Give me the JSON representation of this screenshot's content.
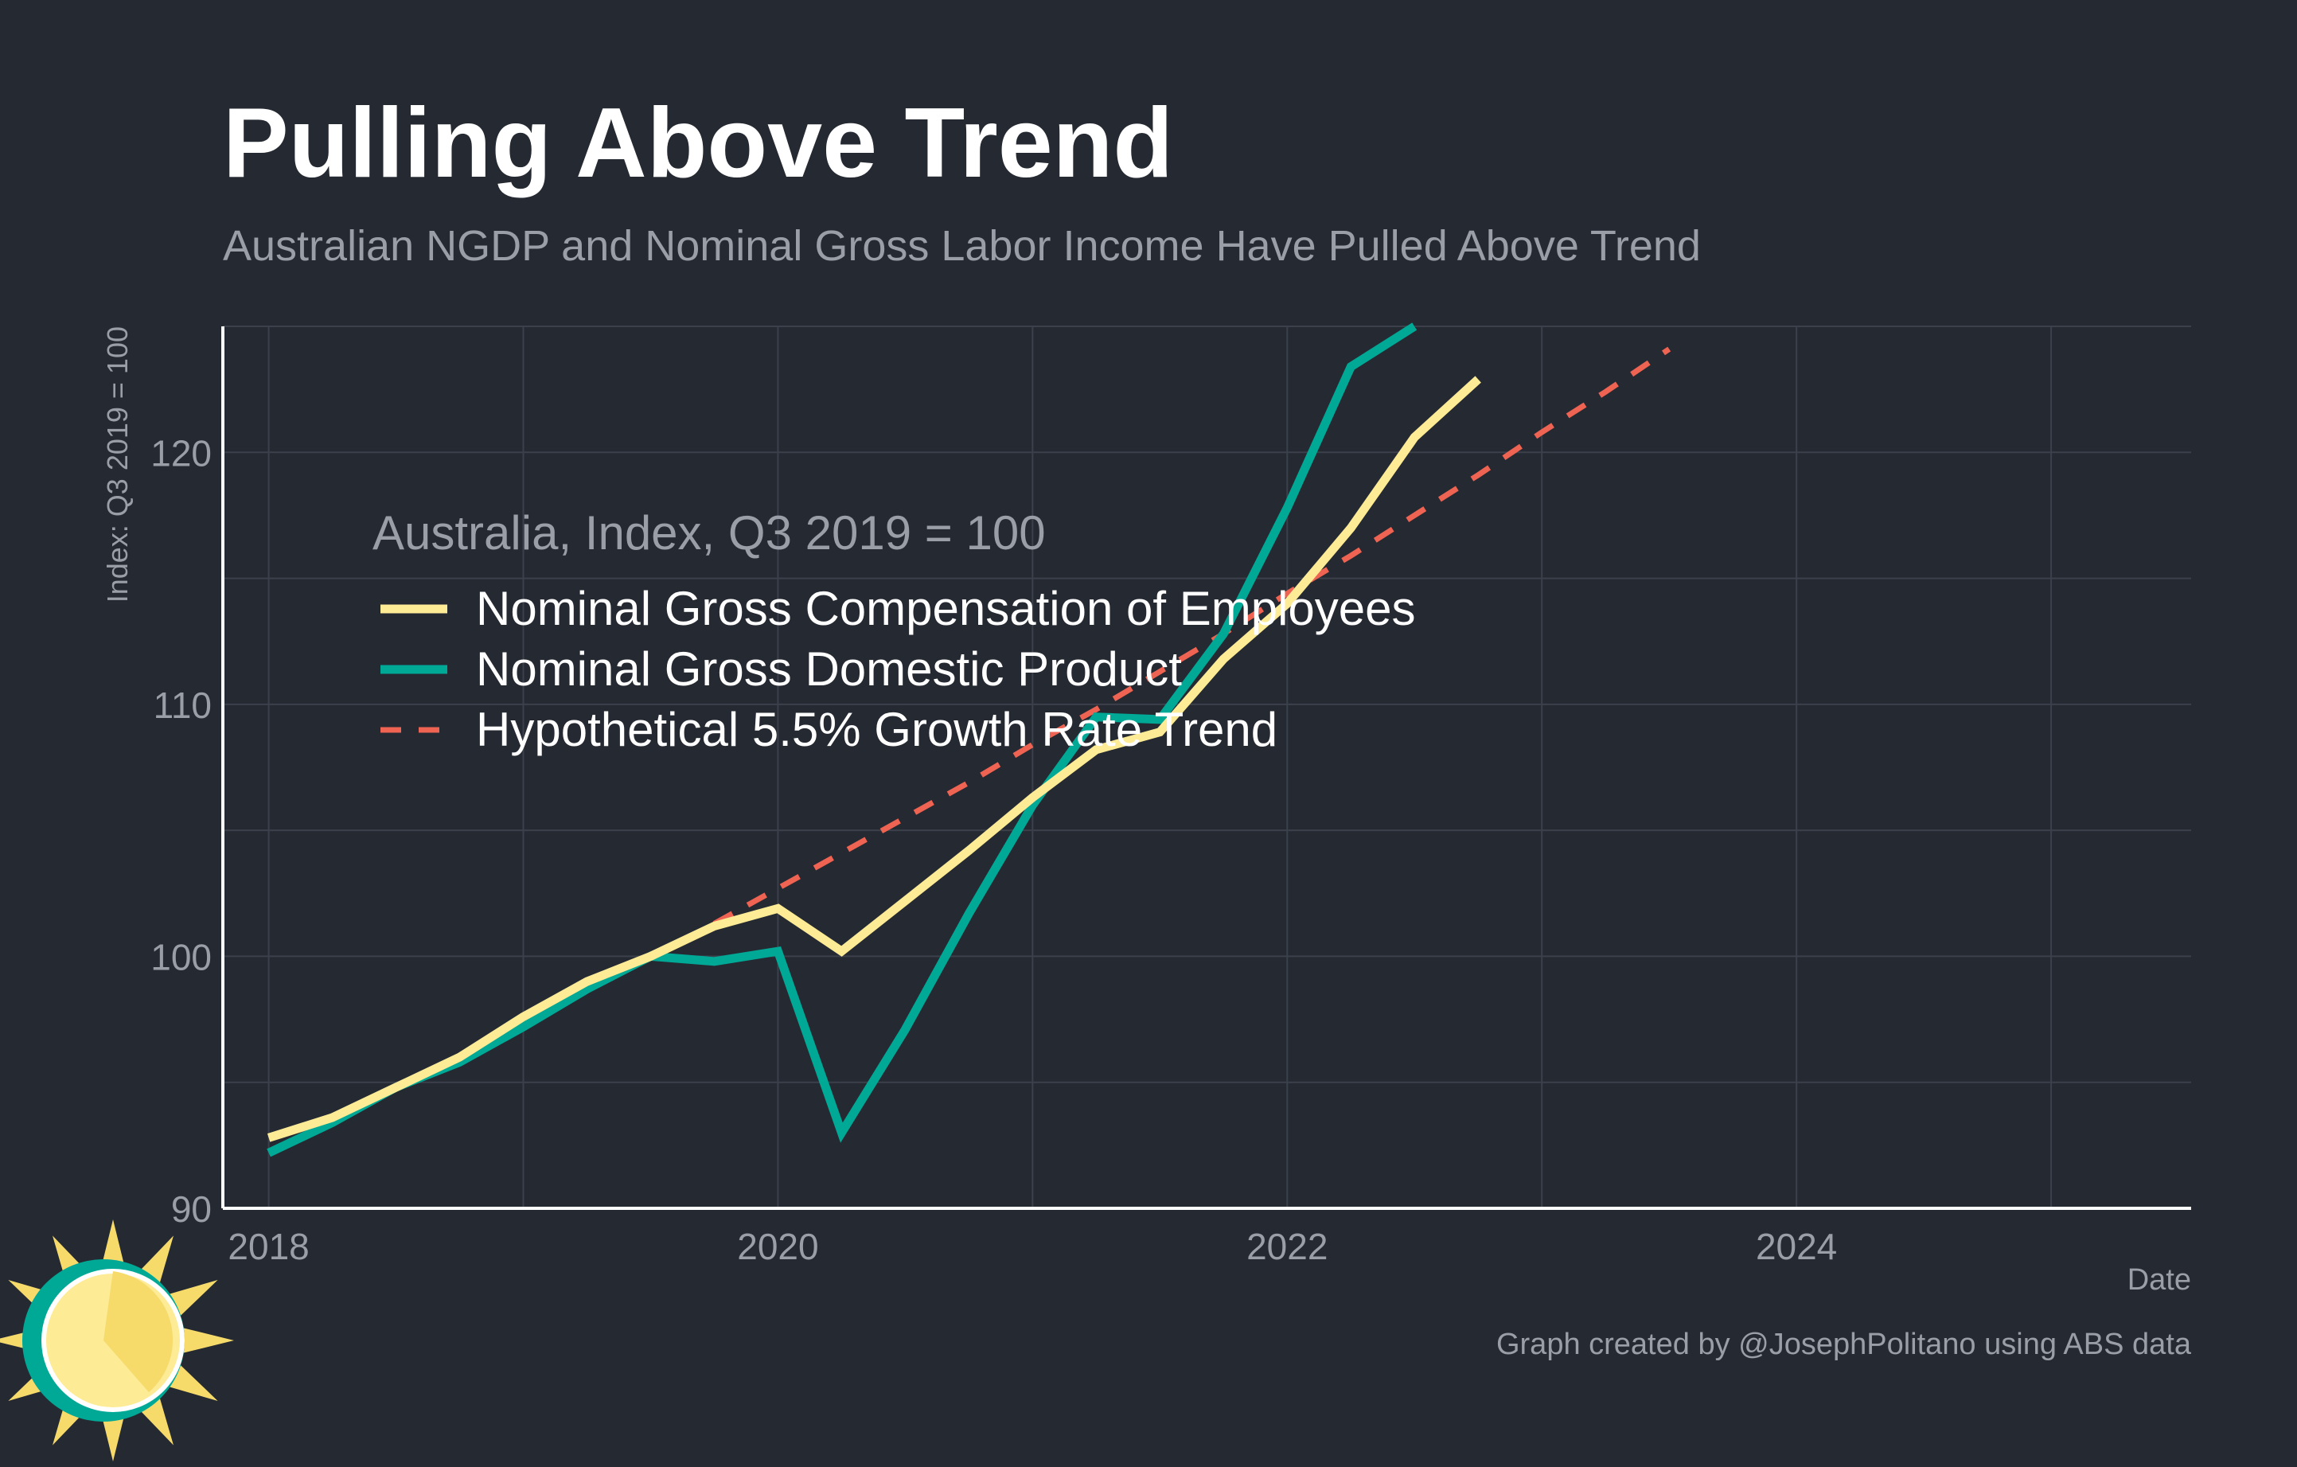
{
  "colors": {
    "background": "#252932",
    "grid": "#3b404b",
    "axis": "#ffffff",
    "title": "#ffffff",
    "subtitle": "#9a9ea6",
    "tick_label": "#9a9ea6",
    "legend_text": "#ffffff",
    "legend_title": "#9a9ea6"
  },
  "logo": {
    "icon": "sun-logo-icon"
  },
  "chart_data": {
    "type": "line",
    "title": "Pulling Above Trend",
    "subtitle": "Australian NGDP and Nominal Gross Labor Income Have Pulled Above Trend",
    "xlabel": "Date",
    "ylabel": "Index: Q3 2019 = 100",
    "caption": "Graph created by @JosephPolitano using ABS data",
    "xlim": [
      2017.82,
      2025.55
    ],
    "ylim": [
      90,
      125
    ],
    "x_ticks": [
      2018,
      2020,
      2022,
      2024
    ],
    "x_tick_labels": [
      "2018",
      "2020",
      "2022",
      "2024"
    ],
    "y_ticks": [
      90,
      100,
      110,
      120
    ],
    "y_tick_labels": [
      "90",
      "100",
      "110",
      "120"
    ],
    "y_minor_ticks": [
      95,
      105,
      115,
      125
    ],
    "x_minor_ticks": [
      2019,
      2021,
      2023,
      2025
    ],
    "grid": true,
    "legend": {
      "title": "Australia, Index, Q3 2019 = 100",
      "position": "top-left"
    },
    "series": [
      {
        "name": "Nominal Gross Compensation of Employees",
        "color": "#fdeb95",
        "dash": "solid",
        "x": [
          2018.0,
          2018.25,
          2018.5,
          2018.75,
          2019.0,
          2019.25,
          2019.5,
          2019.75,
          2020.0,
          2020.25,
          2020.5,
          2020.75,
          2021.0,
          2021.25,
          2021.5,
          2021.75,
          2022.0,
          2022.25,
          2022.5,
          2022.75
        ],
        "values": [
          92.8,
          93.6,
          94.8,
          96.0,
          97.6,
          99.0,
          100.0,
          101.2,
          101.9,
          100.2,
          102.2,
          104.2,
          106.3,
          108.2,
          108.9,
          111.8,
          114.0,
          117.0,
          120.6,
          122.9
        ]
      },
      {
        "name": "Nominal Gross Domestic Product",
        "color": "#00a896",
        "dash": "solid",
        "x": [
          2018.0,
          2018.25,
          2018.5,
          2018.75,
          2019.0,
          2019.25,
          2019.5,
          2019.75,
          2020.0,
          2020.25,
          2020.5,
          2020.75,
          2021.0,
          2021.25,
          2021.5,
          2021.75,
          2022.0,
          2022.25,
          2022.5
        ],
        "values": [
          92.2,
          93.4,
          94.8,
          95.8,
          97.2,
          98.7,
          100.0,
          99.8,
          100.2,
          93.0,
          97.1,
          101.7,
          106.0,
          109.5,
          109.4,
          112.8,
          117.8,
          123.4,
          125.0
        ]
      },
      {
        "name": "Hypothetical 5.5% Growth Rate Trend",
        "color": "#ee6352",
        "dash": "dashed",
        "x": [
          2019.75,
          2020.0,
          2020.25,
          2020.5,
          2020.75,
          2021.0,
          2021.25,
          2021.5,
          2021.75,
          2022.0,
          2022.25,
          2022.5,
          2022.75,
          2023.0,
          2023.25,
          2023.5
        ],
        "values": [
          101.3,
          102.7,
          104.1,
          105.5,
          106.9,
          108.4,
          109.8,
          111.3,
          112.8,
          114.4,
          115.9,
          117.5,
          119.1,
          120.8,
          122.4,
          124.1
        ]
      }
    ]
  }
}
